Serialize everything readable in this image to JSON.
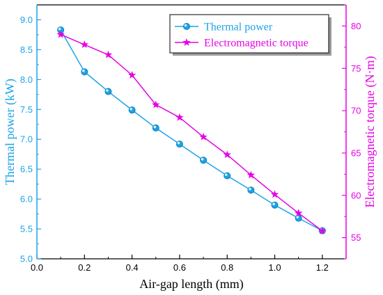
{
  "chart_data": {
    "type": "line",
    "x": [
      0.1,
      0.2,
      0.3,
      0.4,
      0.5,
      0.6,
      0.7,
      0.8,
      0.9,
      1.0,
      1.1,
      1.2
    ],
    "xlabel": "Air-gap length (mm)",
    "xlim": [
      0.0,
      1.3
    ],
    "xticks": [
      "0.0",
      "0.2",
      "0.4",
      "0.6",
      "0.8",
      "1.0",
      "1.2"
    ],
    "xtick_values": [
      0.0,
      0.2,
      0.4,
      0.6,
      0.8,
      1.0,
      1.2
    ],
    "y_left": {
      "label": "Thermal power (kW)",
      "lim": [
        5.0,
        9.25
      ],
      "ticks": [
        "5.0",
        "5.5",
        "6.0",
        "6.5",
        "7.0",
        "7.5",
        "8.0",
        "8.5",
        "9.0"
      ],
      "tick_values": [
        5.0,
        5.5,
        6.0,
        6.5,
        7.0,
        7.5,
        8.0,
        8.5,
        9.0
      ],
      "color": "#1aa3e8"
    },
    "y_right": {
      "label": "Electromagnetic torque (N·m)",
      "lim": [
        52.5,
        82.5
      ],
      "ticks": [
        "55",
        "60",
        "65",
        "70",
        "75",
        "80"
      ],
      "tick_values": [
        55,
        60,
        65,
        70,
        75,
        80
      ],
      "color": "#e600e6"
    },
    "series": [
      {
        "name": "Thermal power",
        "axis": "left",
        "marker": "circle",
        "color": "#1aa3e8",
        "values": [
          8.83,
          8.13,
          7.8,
          7.49,
          7.19,
          6.92,
          6.65,
          6.39,
          6.15,
          5.9,
          5.68,
          5.47
        ]
      },
      {
        "name": "Electromagnetic torque",
        "axis": "right",
        "marker": "star",
        "color": "#e600e6",
        "values": [
          79.0,
          77.8,
          76.6,
          74.2,
          70.7,
          69.2,
          66.9,
          64.8,
          62.4,
          60.1,
          57.9,
          55.8
        ]
      }
    ],
    "legend_position": "top-right",
    "grid": false
  }
}
